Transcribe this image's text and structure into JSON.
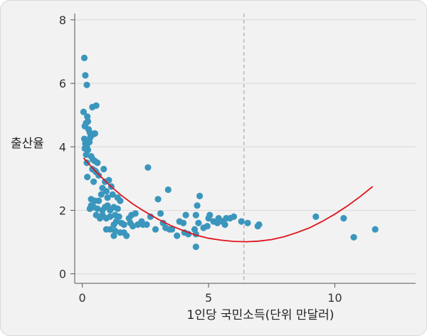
{
  "chart_data": {
    "type": "scatter",
    "xlabel": "1인당 국민소득(단위 만달러)",
    "ylabel": "출산율",
    "xlim": [
      -0.3,
      13.2
    ],
    "ylim": [
      -0.3,
      8.2
    ],
    "xticks": [
      0,
      5,
      10
    ],
    "yticks": [
      0,
      2,
      4,
      6,
      8
    ],
    "grid": "horizontal",
    "reference_line_x": 6.4,
    "colors": {
      "points": "#3a96bd",
      "fit": "#e0141c",
      "reference": "#aaaaaa",
      "grid": "#d9d9d9"
    },
    "series": [
      {
        "kind": "points",
        "points": [
          [
            0.08,
            6.8
          ],
          [
            0.12,
            6.25
          ],
          [
            0.18,
            5.95
          ],
          [
            0.05,
            5.1
          ],
          [
            0.2,
            4.95
          ],
          [
            0.15,
            4.75
          ],
          [
            0.1,
            4.65
          ],
          [
            0.22,
            4.8
          ],
          [
            0.25,
            4.55
          ],
          [
            0.3,
            4.45
          ],
          [
            0.45,
            4.4
          ],
          [
            0.5,
            4.42
          ],
          [
            0.4,
            5.25
          ],
          [
            0.55,
            5.3
          ],
          [
            0.08,
            4.25
          ],
          [
            0.12,
            4.1
          ],
          [
            0.1,
            3.95
          ],
          [
            0.18,
            4.0
          ],
          [
            0.22,
            3.9
          ],
          [
            0.28,
            4.15
          ],
          [
            0.32,
            4.3
          ],
          [
            0.15,
            3.75
          ],
          [
            0.35,
            3.7
          ],
          [
            0.42,
            3.6
          ],
          [
            0.5,
            3.55
          ],
          [
            0.6,
            3.5
          ],
          [
            0.18,
            3.5
          ],
          [
            0.4,
            3.3
          ],
          [
            0.5,
            3.25
          ],
          [
            0.55,
            3.2
          ],
          [
            0.2,
            3.05
          ],
          [
            0.45,
            2.9
          ],
          [
            0.85,
            3.3
          ],
          [
            0.65,
            3.1
          ],
          [
            0.9,
            2.9
          ],
          [
            1.05,
            2.95
          ],
          [
            1.15,
            2.75
          ],
          [
            0.8,
            2.7
          ],
          [
            0.75,
            2.5
          ],
          [
            0.95,
            2.6
          ],
          [
            1.0,
            2.4
          ],
          [
            1.2,
            2.5
          ],
          [
            1.4,
            2.4
          ],
          [
            1.5,
            2.3
          ],
          [
            0.35,
            2.35
          ],
          [
            0.5,
            2.3
          ],
          [
            0.65,
            2.3
          ],
          [
            0.35,
            2.15
          ],
          [
            0.45,
            2.1
          ],
          [
            0.3,
            2.05
          ],
          [
            0.6,
            2.05
          ],
          [
            0.8,
            2.0
          ],
          [
            0.9,
            2.1
          ],
          [
            1.0,
            2.15
          ],
          [
            1.1,
            2.0
          ],
          [
            1.25,
            2.1
          ],
          [
            1.4,
            2.05
          ],
          [
            0.55,
            1.85
          ],
          [
            0.7,
            1.75
          ],
          [
            0.8,
            1.85
          ],
          [
            0.95,
            1.75
          ],
          [
            1.1,
            1.8
          ],
          [
            1.3,
            1.85
          ],
          [
            1.45,
            1.8
          ],
          [
            1.35,
            1.65
          ],
          [
            1.55,
            1.6
          ],
          [
            1.65,
            1.55
          ],
          [
            1.25,
            1.55
          ],
          [
            1.1,
            1.4
          ],
          [
            0.95,
            1.4
          ],
          [
            1.3,
            1.35
          ],
          [
            1.5,
            1.3
          ],
          [
            1.65,
            1.3
          ],
          [
            1.75,
            1.2
          ],
          [
            1.25,
            1.2
          ],
          [
            1.85,
            1.75
          ],
          [
            1.9,
            1.6
          ],
          [
            2.0,
            1.5
          ],
          [
            1.95,
            1.85
          ],
          [
            2.1,
            1.9
          ],
          [
            2.2,
            1.55
          ],
          [
            2.35,
            1.65
          ],
          [
            2.4,
            1.55
          ],
          [
            2.55,
            1.55
          ],
          [
            2.7,
            1.8
          ],
          [
            2.9,
            1.4
          ],
          [
            3.0,
            2.35
          ],
          [
            3.1,
            1.9
          ],
          [
            3.2,
            1.6
          ],
          [
            3.3,
            1.45
          ],
          [
            3.45,
            1.4
          ],
          [
            3.4,
            2.65
          ],
          [
            2.6,
            3.35
          ],
          [
            3.55,
            1.4
          ],
          [
            3.75,
            1.2
          ],
          [
            3.85,
            1.65
          ],
          [
            4.0,
            1.6
          ],
          [
            4.05,
            1.3
          ],
          [
            4.1,
            1.85
          ],
          [
            4.2,
            1.25
          ],
          [
            4.5,
            1.85
          ],
          [
            4.55,
            2.15
          ],
          [
            4.65,
            2.45
          ],
          [
            4.6,
            1.6
          ],
          [
            4.45,
            1.4
          ],
          [
            4.5,
            1.25
          ],
          [
            4.5,
            0.85
          ],
          [
            4.8,
            1.45
          ],
          [
            4.95,
            1.5
          ],
          [
            5.05,
            1.85
          ],
          [
            5.0,
            1.75
          ],
          [
            5.2,
            1.65
          ],
          [
            5.35,
            1.6
          ],
          [
            5.4,
            1.75
          ],
          [
            5.55,
            1.65
          ],
          [
            5.65,
            1.55
          ],
          [
            5.7,
            1.75
          ],
          [
            5.85,
            1.75
          ],
          [
            6.0,
            1.8
          ],
          [
            6.3,
            1.65
          ],
          [
            6.55,
            1.6
          ],
          [
            6.95,
            1.5
          ],
          [
            7.0,
            1.55
          ],
          [
            9.25,
            1.8
          ],
          [
            10.35,
            1.75
          ],
          [
            10.75,
            1.15
          ],
          [
            11.6,
            1.4
          ]
        ]
      },
      {
        "kind": "fit-line",
        "x": [
          0.05,
          0.5,
          1.0,
          1.5,
          2.0,
          2.5,
          3.0,
          3.5,
          4.0,
          4.5,
          5.0,
          5.5,
          6.0,
          6.5,
          7.0,
          7.5,
          8.0,
          8.5,
          9.0,
          9.5,
          10.0,
          10.5,
          11.0,
          11.5
        ],
        "y": [
          3.65,
          3.25,
          2.85,
          2.5,
          2.2,
          1.95,
          1.72,
          1.52,
          1.36,
          1.22,
          1.12,
          1.06,
          1.02,
          1.01,
          1.03,
          1.08,
          1.17,
          1.3,
          1.45,
          1.65,
          1.88,
          2.14,
          2.43,
          2.75
        ]
      }
    ]
  }
}
